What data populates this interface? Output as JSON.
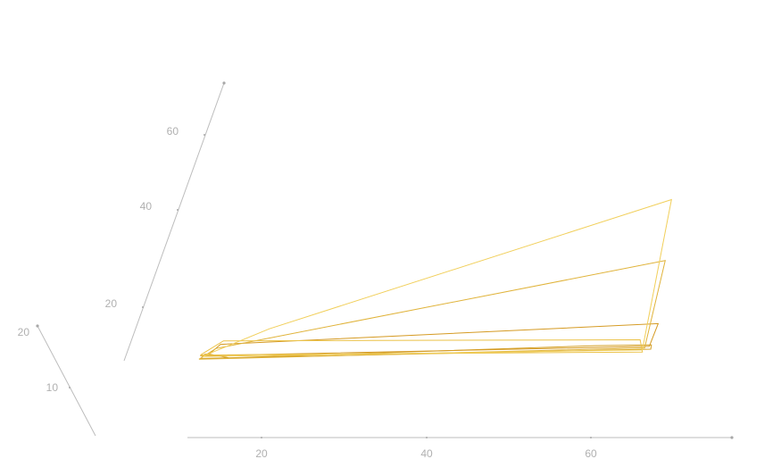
{
  "chart_data": {
    "type": "line",
    "title": "",
    "xlabel": "",
    "ylabel": "",
    "zlabel": "",
    "projection": "3d-parallel-coordinates",
    "axes": {
      "x": {
        "ticks": [
          20,
          40,
          60
        ],
        "tick_labels": [
          "20",
          "40",
          "60"
        ],
        "range": [
          11,
          77
        ]
      },
      "y": {
        "ticks": [
          20,
          40,
          60
        ],
        "tick_labels": [
          "20",
          "40",
          "60"
        ],
        "range": [
          0,
          75
        ]
      },
      "z": {
        "ticks": [
          10,
          20
        ],
        "tick_labels": [
          "10",
          "20"
        ],
        "range": [
          0,
          20
        ]
      }
    },
    "grid": false,
    "legend": "none",
    "series": [
      {
        "color": "#d4a026",
        "outline": [
          [
            12.3,
            78.9,
            0
          ],
          [
            12.6,
            78.3,
            0
          ],
          [
            13.2,
            78.3,
            0
          ],
          [
            15.7,
            78.9,
            0
          ],
          [
            60.0,
            78.4,
            0
          ],
          [
            66.9,
            78.5,
            0
          ],
          [
            67.0,
            79.1,
            0
          ],
          [
            12.3,
            78.9,
            0
          ]
        ]
      },
      {
        "color": "#d59a22",
        "outline": [
          [
            12.1,
            78.5,
            0
          ],
          [
            13.2,
            78.2,
            0
          ],
          [
            14.1,
            76.9,
            0
          ],
          [
            66.8,
            75.4,
            0
          ],
          [
            66.7,
            78.7,
            0
          ],
          [
            12.1,
            78.5,
            0
          ]
        ]
      },
      {
        "color": "#e0b33a",
        "outline": [
          [
            12.1,
            79.0,
            0
          ],
          [
            13.7,
            77.5,
            0
          ],
          [
            64.9,
            66.2,
            0
          ],
          [
            66.2,
            78.9,
            0
          ],
          [
            12.1,
            79.0,
            0
          ]
        ]
      },
      {
        "color": "#ebc248",
        "outline": [
          [
            12.1,
            78.4,
            0
          ],
          [
            14.3,
            76.4,
            0
          ],
          [
            65.3,
            77.7,
            0
          ],
          [
            66.1,
            79.5,
            0
          ],
          [
            12.1,
            78.4,
            0
          ]
        ]
      },
      {
        "color": "#f1cf5a",
        "outline": [
          [
            12.4,
            78.6,
            0
          ],
          [
            19.4,
            74.8,
            0
          ],
          [
            63.0,
            57.3,
            0
          ],
          [
            66.0,
            79.2,
            0
          ],
          [
            12.4,
            78.6,
            0
          ]
        ]
      }
    ]
  }
}
